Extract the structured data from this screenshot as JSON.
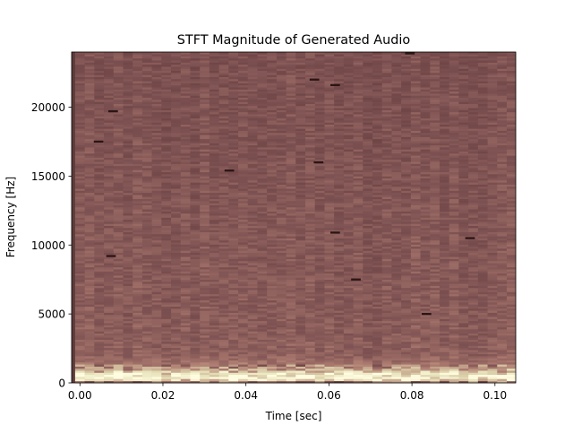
{
  "chart_data": {
    "type": "heatmap",
    "title": "STFT Magnitude of Generated Audio",
    "xlabel": "Time [sec]",
    "ylabel": "Frequency [Hz]",
    "xlim": [
      -0.002,
      0.105
    ],
    "ylim": [
      0,
      24000
    ],
    "x_ticks": [
      0.0,
      0.02,
      0.04,
      0.06,
      0.08,
      0.1
    ],
    "x_tick_labels": [
      "0.00",
      "0.02",
      "0.04",
      "0.06",
      "0.08",
      "0.10"
    ],
    "y_ticks": [
      0,
      5000,
      10000,
      15000,
      20000
    ],
    "y_tick_labels": [
      "0",
      "5000",
      "10000",
      "15000",
      "20000"
    ],
    "grid": false,
    "colormap": "pink",
    "color_scale": {
      "background": "#5e3c3c",
      "low": "#2a1515",
      "mid": "#8a5a5a",
      "high": "#fffcdc"
    },
    "time_frames": {
      "start": 0.0,
      "end": 0.104,
      "count": 46
    },
    "freq_bins": {
      "start": 0,
      "end": 24000,
      "count": 160
    },
    "magnitude_profile": [
      {
        "freq_hz": 0,
        "level": 0.35
      },
      {
        "freq_hz": 300,
        "level": 0.97
      },
      {
        "freq_hz": 600,
        "level": 0.9
      },
      {
        "freq_hz": 900,
        "level": 0.72
      },
      {
        "freq_hz": 1200,
        "level": 0.55
      },
      {
        "freq_hz": 2000,
        "level": 0.46
      },
      {
        "freq_hz": 3500,
        "level": 0.44
      },
      {
        "freq_hz": 5500,
        "level": 0.43
      },
      {
        "freq_hz": 24000,
        "level": 0.38
      }
    ],
    "dark_spots": [
      {
        "t": 0.0045,
        "f": 17500
      },
      {
        "t": 0.008,
        "f": 19700
      },
      {
        "t": 0.0075,
        "f": 9200
      },
      {
        "t": 0.036,
        "f": 15400
      },
      {
        "t": 0.0565,
        "f": 22000
      },
      {
        "t": 0.0615,
        "f": 21600
      },
      {
        "t": 0.0575,
        "f": 16000
      },
      {
        "t": 0.0615,
        "f": 10900
      },
      {
        "t": 0.0665,
        "f": 7500
      },
      {
        "t": 0.0795,
        "f": 23900
      },
      {
        "t": 0.094,
        "f": 10500
      },
      {
        "t": 0.0835,
        "f": 5000
      }
    ]
  }
}
